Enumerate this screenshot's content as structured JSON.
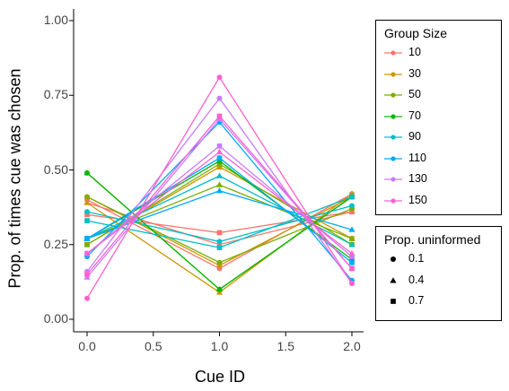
{
  "chart_data": {
    "type": "line",
    "xlabel": "Cue ID",
    "ylabel": "Prop. of times cue was chosen",
    "xlim": [
      0,
      2
    ],
    "ylim": [
      0,
      1
    ],
    "xticks": [
      "0.0",
      "0.5",
      "1.0",
      "1.5",
      "2.0"
    ],
    "yticks": [
      "0.00",
      "0.25",
      "0.50",
      "0.75",
      "1.00"
    ],
    "x": [
      0,
      1,
      2
    ],
    "grid": false,
    "legend_position": "right",
    "legends": [
      {
        "title": "Group Size",
        "entries": [
          {
            "label": "10",
            "color": "#F8766D"
          },
          {
            "label": "30",
            "color": "#CD9600"
          },
          {
            "label": "50",
            "color": "#7CAE00"
          },
          {
            "label": "70",
            "color": "#0CB702"
          },
          {
            "label": "90",
            "color": "#00BFC4"
          },
          {
            "label": "110",
            "color": "#00A9FF"
          },
          {
            "label": "130",
            "color": "#C77CFF"
          },
          {
            "label": "150",
            "color": "#FF61CC"
          }
        ]
      },
      {
        "title": "Prop. uninformed",
        "entries": [
          {
            "label": "0.1",
            "shape": "circle"
          },
          {
            "label": "0.4",
            "shape": "triangle"
          },
          {
            "label": "0.7",
            "shape": "square"
          }
        ]
      }
    ],
    "series": [
      {
        "group": "10",
        "uninformed": "0.1",
        "color": "#F8766D",
        "shape": "circle",
        "values": [
          0.4,
          0.17,
          0.42
        ]
      },
      {
        "group": "10",
        "uninformed": "0.4",
        "color": "#F8766D",
        "shape": "triangle",
        "values": [
          0.39,
          0.25,
          0.36
        ]
      },
      {
        "group": "10",
        "uninformed": "0.7",
        "color": "#F8766D",
        "shape": "square",
        "values": [
          0.35,
          0.29,
          0.36
        ]
      },
      {
        "group": "30",
        "uninformed": "0.1",
        "color": "#CD9600",
        "shape": "circle",
        "values": [
          0.41,
          0.18,
          0.41
        ]
      },
      {
        "group": "30",
        "uninformed": "0.4",
        "color": "#CD9600",
        "shape": "triangle",
        "values": [
          0.39,
          0.09,
          0.42
        ]
      },
      {
        "group": "30",
        "uninformed": "0.7",
        "color": "#CD9600",
        "shape": "square",
        "values": [
          0.25,
          0.51,
          0.27
        ]
      },
      {
        "group": "50",
        "uninformed": "0.1",
        "color": "#7CAE00",
        "shape": "circle",
        "values": [
          0.41,
          0.19,
          0.37
        ]
      },
      {
        "group": "50",
        "uninformed": "0.4",
        "color": "#7CAE00",
        "shape": "triangle",
        "values": [
          0.27,
          0.45,
          0.27
        ]
      },
      {
        "group": "50",
        "uninformed": "0.7",
        "color": "#7CAE00",
        "shape": "square",
        "values": [
          0.25,
          0.52,
          0.25
        ]
      },
      {
        "group": "70",
        "uninformed": "0.1",
        "color": "#0CB702",
        "shape": "circle",
        "values": [
          0.49,
          0.1,
          0.41
        ]
      },
      {
        "group": "70",
        "uninformed": "0.4",
        "color": "#0CB702",
        "shape": "triangle",
        "values": [
          0.49,
          0.1,
          0.41
        ]
      },
      {
        "group": "70",
        "uninformed": "0.7",
        "color": "#0CB702",
        "shape": "square",
        "values": [
          0.27,
          0.53,
          0.2
        ]
      },
      {
        "group": "90",
        "uninformed": "0.1",
        "color": "#00BFC4",
        "shape": "circle",
        "values": [
          0.36,
          0.26,
          0.38
        ]
      },
      {
        "group": "90",
        "uninformed": "0.4",
        "color": "#00BFC4",
        "shape": "triangle",
        "values": [
          0.27,
          0.48,
          0.25
        ]
      },
      {
        "group": "90",
        "uninformed": "0.7",
        "color": "#00BFC4",
        "shape": "square",
        "values": [
          0.33,
          0.24,
          0.41
        ]
      },
      {
        "group": "110",
        "uninformed": "0.1",
        "color": "#00A9FF",
        "shape": "circle",
        "values": [
          0.21,
          0.66,
          0.13
        ]
      },
      {
        "group": "110",
        "uninformed": "0.4",
        "color": "#00A9FF",
        "shape": "triangle",
        "values": [
          0.27,
          0.43,
          0.3
        ]
      },
      {
        "group": "110",
        "uninformed": "0.7",
        "color": "#00A9FF",
        "shape": "square",
        "values": [
          0.27,
          0.54,
          0.19
        ]
      },
      {
        "group": "130",
        "uninformed": "0.1",
        "color": "#C77CFF",
        "shape": "circle",
        "values": [
          0.16,
          0.74,
          0.12
        ]
      },
      {
        "group": "130",
        "uninformed": "0.4",
        "color": "#C77CFF",
        "shape": "triangle",
        "values": [
          0.14,
          0.67,
          0.17
        ]
      },
      {
        "group": "130",
        "uninformed": "0.7",
        "color": "#C77CFF",
        "shape": "square",
        "values": [
          0.22,
          0.58,
          0.21
        ]
      },
      {
        "group": "150",
        "uninformed": "0.1",
        "color": "#FF61CC",
        "shape": "circle",
        "values": [
          0.07,
          0.81,
          0.12
        ]
      },
      {
        "group": "150",
        "uninformed": "0.4",
        "color": "#FF61CC",
        "shape": "triangle",
        "values": [
          0.22,
          0.56,
          0.22
        ]
      },
      {
        "group": "150",
        "uninformed": "0.7",
        "color": "#FF61CC",
        "shape": "square",
        "values": [
          0.15,
          0.68,
          0.17
        ]
      }
    ]
  }
}
